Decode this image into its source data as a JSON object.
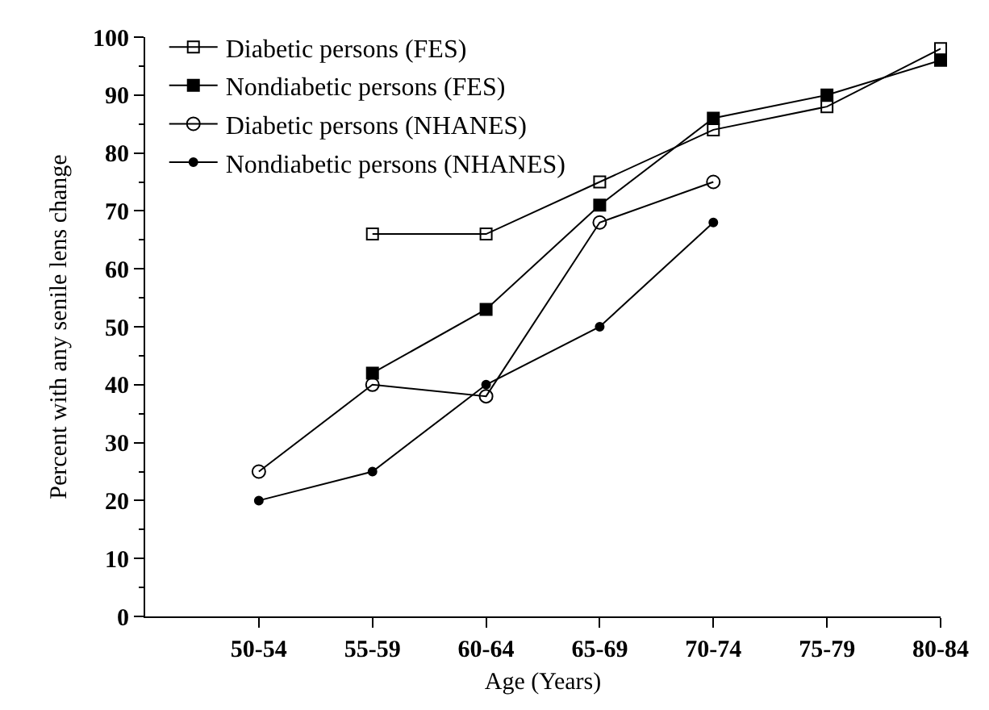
{
  "chart_data": {
    "type": "line",
    "xlabel": "Age (Years)",
    "ylabel": "Percent with any senile lens change",
    "categories": [
      "50-54",
      "55-59",
      "60-64",
      "65-69",
      "70-74",
      "75-79",
      "80-84"
    ],
    "series": [
      {
        "name": "Diabetic persons (FES)",
        "color": "#000000",
        "marker": "square-open",
        "values": [
          null,
          66,
          66,
          75,
          84,
          88,
          98
        ]
      },
      {
        "name": "Nondiabetic persons (FES)",
        "color": "#000000",
        "marker": "square",
        "values": [
          null,
          42,
          53,
          71,
          86,
          90,
          96
        ]
      },
      {
        "name": "Diabetic persons (NHANES)",
        "color": "#000000",
        "marker": "circle-open",
        "values": [
          25,
          40,
          38,
          68,
          75,
          null,
          null
        ]
      },
      {
        "name": "Nondiabetic persons (NHANES)",
        "color": "#000000",
        "marker": "circle",
        "values": [
          20,
          25,
          40,
          50,
          68,
          null,
          null
        ]
      }
    ],
    "ylim": [
      0,
      100
    ],
    "yticks": [
      0,
      10,
      20,
      30,
      40,
      50,
      60,
      70,
      80,
      90,
      100
    ],
    "grid": false,
    "legend": "top left",
    "line_style": "solid"
  }
}
